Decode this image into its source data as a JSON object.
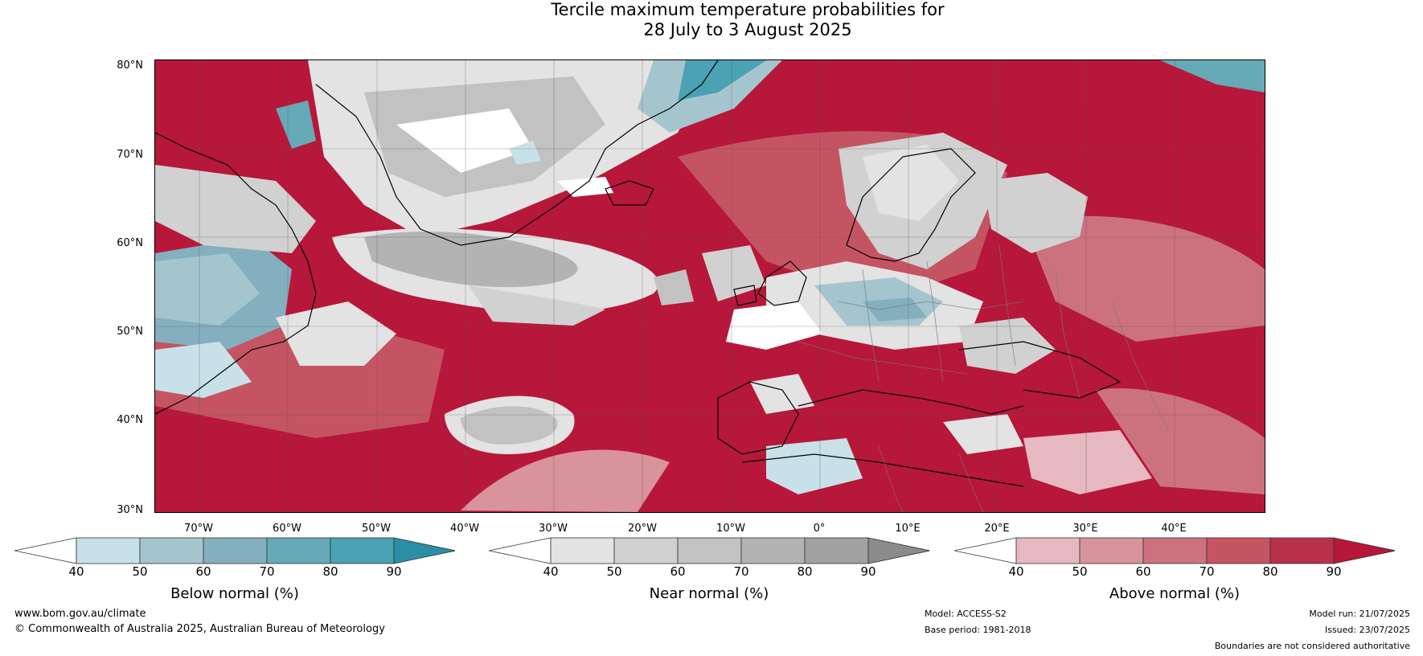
{
  "title": {
    "line1": "Tercile maximum temperature probabilities for",
    "line2": "28 July to 3 August 2025"
  },
  "map": {
    "latitude_labels": [
      "80°N",
      "70°N",
      "60°N",
      "50°N",
      "40°N",
      "30°N"
    ],
    "longitude_labels": [
      "70°W",
      "60°W",
      "50°W",
      "40°W",
      "30°W",
      "20°W",
      "10°W",
      "0°",
      "10°E",
      "20°E",
      "30°E",
      "40°E"
    ]
  },
  "colorbars": [
    {
      "title": "Below normal (%)",
      "ticks": [
        "40",
        "50",
        "60",
        "70",
        "80",
        "90"
      ],
      "colors": [
        "#ffffff",
        "#c8e1e8",
        "#a5c5ce",
        "#84afbf",
        "#66a9b7",
        "#4aa2b4",
        "#2a8ea4"
      ]
    },
    {
      "title": "Near normal (%)",
      "ticks": [
        "40",
        "50",
        "60",
        "70",
        "80",
        "90"
      ],
      "colors": [
        "#ffffff",
        "#e3e3e3",
        "#d1d1d1",
        "#c2c2c2",
        "#b3b3b3",
        "#a1a1a1",
        "#8b8b8b"
      ]
    },
    {
      "title": "Above normal (%)",
      "ticks": [
        "40",
        "50",
        "60",
        "70",
        "80",
        "90"
      ],
      "colors": [
        "#ffffff",
        "#e6b9c0",
        "#d9939c",
        "#cc727e",
        "#c55462",
        "#b9304a",
        "#b7173a"
      ]
    }
  ],
  "footer": {
    "website": "www.bom.gov.au/climate",
    "copyright": "© Commonwealth of Australia 2025, Australian Bureau of Meteorology",
    "model": "Model: ACCESS-S2",
    "base_period": "Base period: 1981-2018",
    "model_run": "Model run: 21/07/2025",
    "issued": "Issued: 23/07/2025",
    "disclaimer": "Boundaries are not considered authoritative"
  }
}
